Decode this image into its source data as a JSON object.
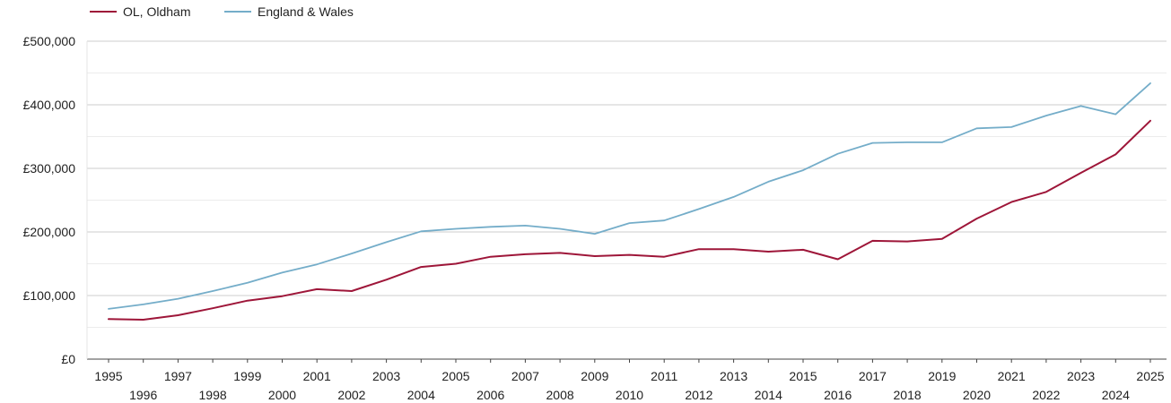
{
  "chart_data": {
    "type": "line",
    "x": [
      1995,
      1996,
      1997,
      1998,
      1999,
      2000,
      2001,
      2002,
      2003,
      2004,
      2005,
      2006,
      2007,
      2008,
      2009,
      2010,
      2011,
      2012,
      2013,
      2014,
      2015,
      2016,
      2017,
      2018,
      2019,
      2020,
      2021,
      2022,
      2023,
      2024,
      2025
    ],
    "series": [
      {
        "name": "OL, Oldham",
        "color": "#9e1639",
        "values": [
          63000,
          62000,
          69000,
          80000,
          92000,
          99000,
          110000,
          107000,
          125000,
          145000,
          150000,
          161000,
          165000,
          167000,
          162000,
          164000,
          161000,
          173000,
          173000,
          169000,
          172000,
          157000,
          186000,
          185000,
          189000,
          221000,
          247000,
          263000,
          293000,
          322000,
          375000
        ]
      },
      {
        "name": "England & Wales",
        "color": "#74adc9",
        "values": [
          79000,
          86000,
          95000,
          107000,
          120000,
          136000,
          149000,
          166000,
          184000,
          201000,
          205000,
          208000,
          210000,
          205000,
          197000,
          214000,
          218000,
          236000,
          255000,
          279000,
          297000,
          323000,
          340000,
          341000,
          341000,
          363000,
          365000,
          383000,
          398000,
          385000,
          434000
        ]
      }
    ],
    "y_ticks": [
      "£0",
      "£100,000",
      "£200,000",
      "£300,000",
      "£400,000",
      "£500,000"
    ],
    "ylim": [
      0,
      500000
    ],
    "grid": true,
    "legend_position": "top-left",
    "title": "",
    "xlabel": "",
    "ylabel": ""
  }
}
